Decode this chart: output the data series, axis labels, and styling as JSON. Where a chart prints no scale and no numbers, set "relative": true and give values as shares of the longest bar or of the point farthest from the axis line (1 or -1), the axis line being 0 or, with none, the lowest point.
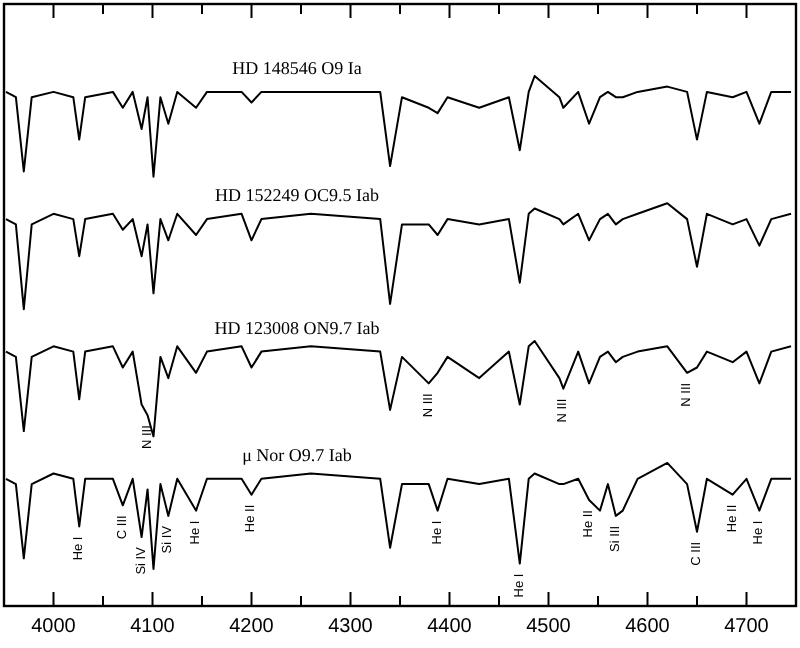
{
  "chart_data": {
    "type": "line",
    "relative": true,
    "x": [
      3952,
      3962,
      3970,
      3978,
      4000,
      4020,
      4026,
      4032,
      4060,
      4070,
      4080,
      4089,
      4095,
      4101,
      4108,
      4116,
      4125,
      4144,
      4155,
      4190,
      4200,
      4210,
      4260,
      4330,
      4340,
      4352,
      4379,
      4388,
      4398,
      4430,
      4460,
      4471,
      4480,
      4486,
      4511,
      4515,
      4530,
      4541,
      4552,
      4560,
      4568,
      4575,
      4590,
      4620,
      4640,
      4650,
      4660,
      4686,
      4700,
      4713,
      4725,
      4745
    ],
    "xlim": [
      3950,
      4750
    ],
    "xticks": [
      4000,
      {
        "value": 4050,
        "label": null
      },
      4100,
      {
        "value": 4150,
        "label": null
      },
      4200,
      {
        "value": 4250,
        "label": null
      },
      4300,
      {
        "value": 4350,
        "label": null
      },
      4400,
      {
        "value": 4450,
        "label": null
      },
      4500,
      {
        "value": 4550,
        "label": null
      },
      4600,
      {
        "value": 4650,
        "label": null
      },
      4700
    ],
    "series": [
      {
        "name": "HD 148546  O9 Ia",
        "color": "#000000",
        "values": [
          0.97,
          0.96,
          0.82,
          0.96,
          0.97,
          0.96,
          0.88,
          0.96,
          0.97,
          0.94,
          0.97,
          0.9,
          0.96,
          0.81,
          0.96,
          0.91,
          0.97,
          0.94,
          0.97,
          0.97,
          0.95,
          0.97,
          0.97,
          0.97,
          0.83,
          0.96,
          0.94,
          0.93,
          0.96,
          0.94,
          0.96,
          0.86,
          0.97,
          1,
          0.96,
          0.94,
          0.97,
          0.91,
          0.96,
          0.97,
          0.96,
          0.96,
          0.97,
          0.98,
          0.97,
          0.88,
          0.97,
          0.96,
          0.97,
          0.91,
          0.97,
          0.97
        ]
      },
      {
        "name": "HD 152249  OC9.5 Iab",
        "color": "#000000",
        "values": [
          0.73,
          0.72,
          0.56,
          0.72,
          0.74,
          0.73,
          0.66,
          0.73,
          0.74,
          0.71,
          0.73,
          0.66,
          0.72,
          0.59,
          0.73,
          0.69,
          0.74,
          0.7,
          0.73,
          0.74,
          0.69,
          0.73,
          0.74,
          0.73,
          0.57,
          0.72,
          0.72,
          0.7,
          0.73,
          0.72,
          0.73,
          0.61,
          0.74,
          0.75,
          0.73,
          0.72,
          0.74,
          0.69,
          0.73,
          0.74,
          0.72,
          0.73,
          0.74,
          0.76,
          0.73,
          0.64,
          0.74,
          0.72,
          0.73,
          0.68,
          0.73,
          0.74
        ]
      },
      {
        "name": "HD 123008  ON9.7 Iab",
        "color": "#000000",
        "values": [
          0.48,
          0.47,
          0.33,
          0.47,
          0.49,
          0.48,
          0.39,
          0.48,
          0.49,
          0.45,
          0.48,
          0.38,
          0.36,
          0.32,
          0.47,
          0.43,
          0.49,
          0.44,
          0.48,
          0.49,
          0.45,
          0.48,
          0.49,
          0.48,
          0.37,
          0.47,
          0.42,
          0.44,
          0.47,
          0.43,
          0.48,
          0.38,
          0.49,
          0.5,
          0.43,
          0.41,
          0.48,
          0.42,
          0.47,
          0.48,
          0.46,
          0.47,
          0.48,
          0.49,
          0.44,
          0.45,
          0.48,
          0.46,
          0.48,
          0.42,
          0.48,
          0.49
        ]
      },
      {
        "name": "μ Nor  O9.7 Iab",
        "color": "#000000",
        "values": [
          0.24,
          0.23,
          0.09,
          0.23,
          0.25,
          0.24,
          0.15,
          0.24,
          0.24,
          0.19,
          0.24,
          0.13,
          0.22,
          0.07,
          0.23,
          0.17,
          0.24,
          0.18,
          0.24,
          0.24,
          0.21,
          0.24,
          0.25,
          0.24,
          0.11,
          0.23,
          0.23,
          0.18,
          0.24,
          0.23,
          0.24,
          0.08,
          0.24,
          0.25,
          0.23,
          0.23,
          0.24,
          0.2,
          0.18,
          0.23,
          0.17,
          0.18,
          0.24,
          0.27,
          0.23,
          0.14,
          0.24,
          0.21,
          0.24,
          0.18,
          0.24,
          0.24
        ]
      }
    ],
    "annotations": [
      {
        "text": "N III",
        "x": 4095,
        "y": 0.36
      },
      {
        "text": "N III",
        "x": 4379,
        "y": 0.42
      },
      {
        "text": "N III",
        "x": 4515,
        "y": 0.41
      },
      {
        "text": "N III",
        "x": 4640,
        "y": 0.44
      },
      {
        "text": "He I",
        "x": 4026,
        "y": 0.15
      },
      {
        "text": "C III",
        "x": 4070,
        "y": 0.19
      },
      {
        "text": "Si IV",
        "x": 4089,
        "y": 0.13
      },
      {
        "text": "Si IV",
        "x": 4116,
        "y": 0.17
      },
      {
        "text": "He I",
        "x": 4144,
        "y": 0.18
      },
      {
        "text": "He II",
        "x": 4200,
        "y": 0.21
      },
      {
        "text": "He I",
        "x": 4388,
        "y": 0.18
      },
      {
        "text": "He I",
        "x": 4471,
        "y": 0.08
      },
      {
        "text": "He II",
        "x": 4541,
        "y": 0.2
      },
      {
        "text": "Si III",
        "x": 4568,
        "y": 0.17
      },
      {
        "text": "C III",
        "x": 4650,
        "y": 0.14
      },
      {
        "text": "He II",
        "x": 4686,
        "y": 0.21
      },
      {
        "text": "He I",
        "x": 4713,
        "y": 0.18
      }
    ]
  }
}
